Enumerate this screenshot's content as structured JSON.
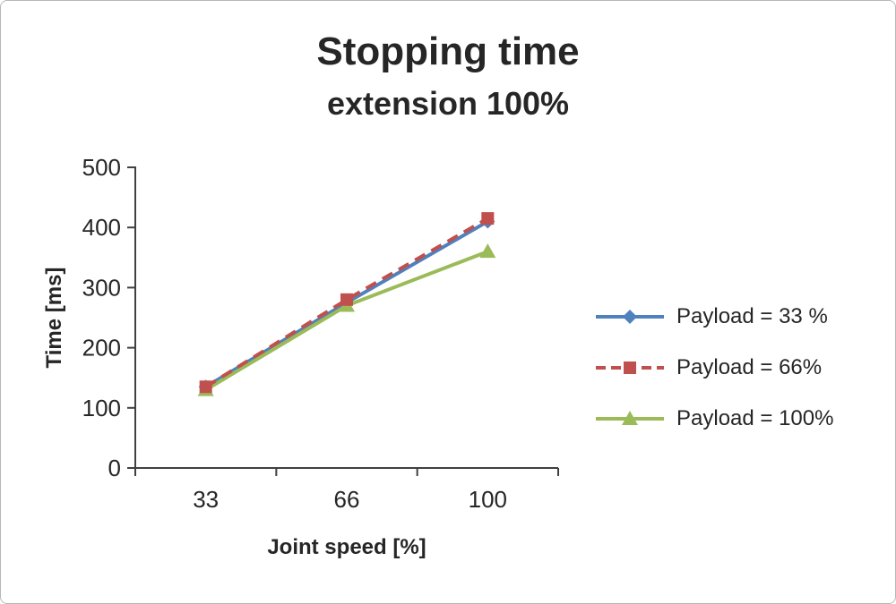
{
  "chart_data": {
    "type": "line",
    "title": "Stopping time",
    "subtitle": "extension 100%",
    "xlabel": "Joint speed [%]",
    "ylabel": "Time [ms]",
    "categories": [
      "33",
      "66",
      "100"
    ],
    "x": [
      33,
      66,
      100
    ],
    "ylim": [
      0,
      500
    ],
    "yticks": [
      0,
      100,
      200,
      300,
      400,
      500
    ],
    "grid": false,
    "legend_position": "right",
    "axis_color": "#404040",
    "series": [
      {
        "name": "Payload = 33 %",
        "values": [
          135,
          275,
          410
        ],
        "color": "#4f81bd",
        "marker": "diamond",
        "line_style": "solid"
      },
      {
        "name": "Payload =  66%",
        "values": [
          135,
          280,
          415
        ],
        "color": "#c0504d",
        "marker": "square",
        "line_style": "dashed"
      },
      {
        "name": "Payload =  100%",
        "values": [
          130,
          270,
          360
        ],
        "color": "#9bbb59",
        "marker": "triangle",
        "line_style": "solid"
      }
    ]
  }
}
